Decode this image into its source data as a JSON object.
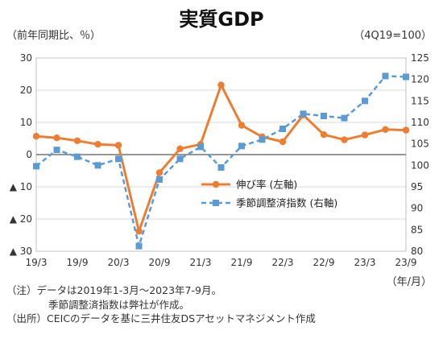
{
  "chart_data": {
    "type": "line",
    "title": "実質GDP",
    "left_axis_label": "（前年同期比、％）",
    "right_axis_label": "（4Q19=100）",
    "x_unit": "（年/月）",
    "x": [
      "19/3",
      "19/6",
      "19/9",
      "19/12",
      "20/3",
      "20/6",
      "20/9",
      "20/12",
      "21/3",
      "21/6",
      "21/9",
      "21/12",
      "22/3",
      "22/6",
      "22/9",
      "22/12",
      "23/3",
      "23/6",
      "23/9"
    ],
    "x_tick_labels": [
      "19/3",
      "19/9",
      "20/3",
      "20/9",
      "21/3",
      "21/9",
      "22/3",
      "22/9",
      "23/3",
      "23/9"
    ],
    "left_ylim": [
      -30,
      30
    ],
    "left_ticks": [
      30,
      20,
      10,
      0,
      -10,
      -20,
      -30
    ],
    "left_tick_labels": [
      "30",
      "20",
      "10",
      "0",
      "▲ 10",
      "▲ 20",
      "▲ 30"
    ],
    "right_ylim": [
      80,
      125
    ],
    "right_ticks": [
      125,
      120,
      115,
      110,
      105,
      100,
      95,
      90,
      85,
      80
    ],
    "series": [
      {
        "name": "伸び率 (左軸)",
        "axis": "left",
        "color": "#ED7D31",
        "style": "solid",
        "marker": "circle",
        "values": [
          5.7,
          5.2,
          4.3,
          3.2,
          2.9,
          -23.8,
          -5.6,
          1.8,
          3.2,
          21.6,
          9.1,
          5.5,
          4.0,
          12.3,
          6.2,
          4.6,
          6.1,
          7.8,
          7.6
        ]
      },
      {
        "name": "季節調整済指数 (右軸)",
        "axis": "right",
        "color": "#5B9BD5",
        "style": "dashed",
        "marker": "square",
        "values": [
          99.8,
          103.6,
          102.0,
          100.0,
          101.5,
          81.2,
          96.7,
          101.5,
          104.3,
          99.5,
          104.5,
          106.0,
          108.5,
          112.0,
          111.5,
          111.0,
          115.0,
          120.8,
          120.6
        ]
      }
    ],
    "legend_position": "center-right"
  },
  "notes": {
    "line1": "（注）データは2019年1-3月～2023年7-9月。",
    "line2": "季節調整済指数は弊社が作成。",
    "line3": "（出所）CEICのデータを基に三井住友DSアセットマネジメント作成"
  }
}
